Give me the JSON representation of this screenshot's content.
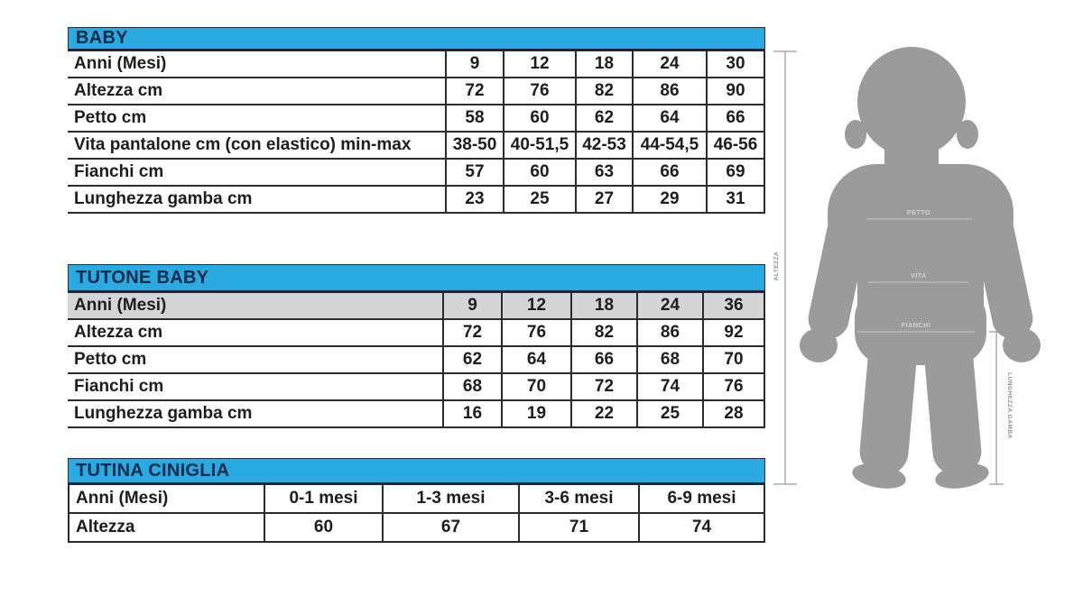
{
  "colors": {
    "table_header_bg": "#29abe2",
    "table_header_text": "#13294b",
    "table_border": "#2b2b2b",
    "shaded_row_bg": "#d5d5d5",
    "silhouette_gray": "#9b9b9b",
    "figure_line": "#c9c9c9",
    "figure_label": "#d4d4d4",
    "measure_line": "#9a9a9a",
    "measure_label": "#8f8f8f"
  },
  "tables": [
    {
      "title": "BABY",
      "rows": [
        {
          "label": "Anni (Mesi)",
          "values": [
            "9",
            "12",
            "18",
            "24",
            "30"
          ]
        },
        {
          "label": "Altezza cm",
          "values": [
            "72",
            "76",
            "82",
            "86",
            "90"
          ]
        },
        {
          "label": "Petto cm",
          "values": [
            "58",
            "60",
            "62",
            "64",
            "66"
          ]
        },
        {
          "label": "Vita pantalone cm (con elastico) min-max",
          "values": [
            "38-50",
            "40-51,5",
            "42-53",
            "44-54,5",
            "46-56"
          ]
        },
        {
          "label": "Fianchi cm",
          "values": [
            "57",
            "60",
            "63",
            "66",
            "69"
          ]
        },
        {
          "label": "Lunghezza gamba cm",
          "values": [
            "23",
            "25",
            "27",
            "29",
            "31"
          ]
        }
      ]
    },
    {
      "title": "TUTONE BABY",
      "rows": [
        {
          "label": "Anni (Mesi)",
          "values": [
            "9",
            "12",
            "18",
            "24",
            "36"
          ],
          "shaded": true
        },
        {
          "label": "Altezza cm",
          "values": [
            "72",
            "76",
            "82",
            "86",
            "92"
          ]
        },
        {
          "label": "Petto cm",
          "values": [
            "62",
            "64",
            "66",
            "68",
            "70"
          ]
        },
        {
          "label": "Fianchi cm",
          "values": [
            "68",
            "70",
            "72",
            "74",
            "76"
          ]
        },
        {
          "label": "Lunghezza gamba cm",
          "values": [
            "16",
            "19",
            "22",
            "25",
            "28"
          ]
        }
      ]
    },
    {
      "title": "TUTINA CINIGLIA",
      "rows": [
        {
          "label": "Anni (Mesi)",
          "values": [
            "0-1 mesi",
            "1-3 mesi",
            "3-6 mesi",
            "6-9 mesi"
          ]
        },
        {
          "label": "Altezza",
          "values": [
            "60",
            "67",
            "71",
            "74"
          ]
        }
      ]
    }
  ],
  "figure": {
    "petto_label": "PETTO",
    "vita_label": "VITA",
    "fianchi_label": "FIANCHI",
    "altezza_label": "ALTEZZA",
    "lunghezza_gamba_label": "LUNGHEZZA GAMBA"
  }
}
